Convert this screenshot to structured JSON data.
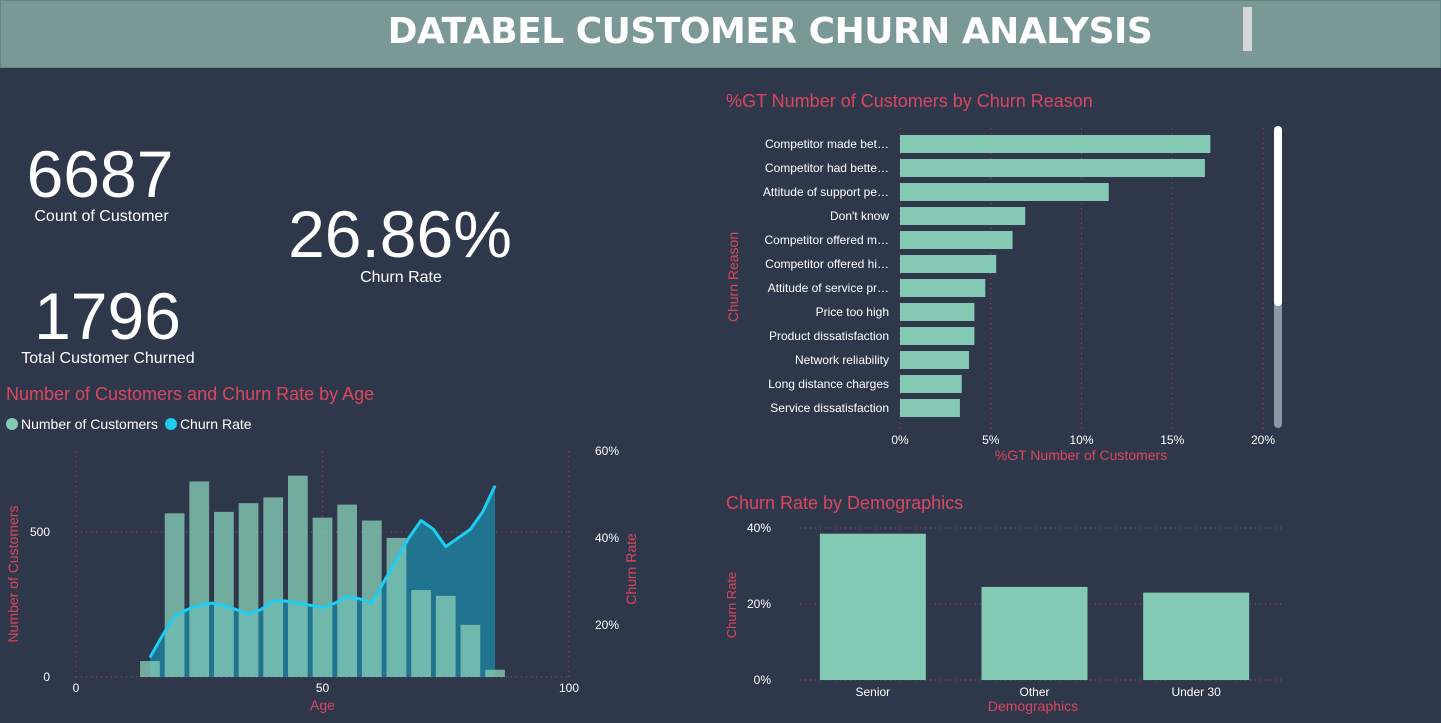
{
  "header": {
    "title": "DATABEL CUSTOMER CHURN ANALYSIS"
  },
  "kpis": {
    "count_customer": {
      "value": "6687",
      "label": "Count of Customer"
    },
    "churn_rate": {
      "value": "26.86%",
      "label": "Churn Rate"
    },
    "total_churned": {
      "value": "1796",
      "label": "Total Customer Churned"
    }
  },
  "colors": {
    "bar": "#83c9b4",
    "line": "#1ecdf2",
    "title": "#d9475f",
    "background": "#2f374b",
    "grid": "#c0405a"
  },
  "chart_data": [
    {
      "type": "bar+line",
      "title": "Number of Customers and Churn Rate by Age",
      "legend": [
        "Number of Customers",
        "Churn Rate"
      ],
      "legend_position": "top-left",
      "xlabel": "Age",
      "ylabel": "Number of Customers",
      "y2label": "Churn Rate",
      "xlim": [
        0,
        100
      ],
      "ylim": [
        0,
        780
      ],
      "y2lim": [
        8,
        60
      ],
      "xticks": [
        "0",
        "50",
        "100"
      ],
      "yticks": [
        "0",
        "500"
      ],
      "y2ticks": [
        "20%",
        "40%",
        "60%"
      ],
      "series": [
        {
          "name": "Number of Customers",
          "x": [
            15,
            20,
            25,
            30,
            35,
            40,
            45,
            50,
            55,
            60,
            65,
            70,
            75,
            80,
            85
          ],
          "values": [
            55,
            565,
            675,
            570,
            600,
            620,
            695,
            550,
            595,
            540,
            480,
            300,
            280,
            180,
            25
          ]
        },
        {
          "name": "Churn Rate",
          "x": [
            15,
            17.5,
            20,
            22.5,
            25,
            27.5,
            30,
            32.5,
            35,
            37.5,
            40,
            42.5,
            45,
            47.5,
            50,
            52.5,
            55,
            57.5,
            60,
            62.5,
            65,
            67.5,
            70,
            72.5,
            75,
            77.5,
            80,
            82.5,
            85
          ],
          "values": [
            12.5,
            17.5,
            22,
            23.5,
            24.5,
            25,
            24.5,
            23.5,
            22.5,
            23.5,
            25.5,
            25.5,
            25,
            24.5,
            24,
            25,
            26.5,
            26,
            25,
            30,
            35,
            40,
            44,
            42,
            38,
            40,
            42,
            46,
            52
          ]
        }
      ]
    },
    {
      "type": "bar",
      "orientation": "horizontal",
      "title": "%GT Number of Customers by Churn Reason",
      "xlabel": "%GT Number of Customers",
      "ylabel": "Churn Reason",
      "xlim": [
        0,
        20
      ],
      "xticks": [
        "0%",
        "5%",
        "10%",
        "15%",
        "20%"
      ],
      "categories": [
        "Competitor made bet…",
        "Competitor had bette…",
        "Attitude of support pe…",
        "Don't know",
        "Competitor offered m…",
        "Competitor offered hi…",
        "Attitude of service pr…",
        "Price too high",
        "Product dissatisfaction",
        "Network reliability",
        "Long distance charges",
        "Service dissatisfaction"
      ],
      "values": [
        17.1,
        16.8,
        11.5,
        6.9,
        6.2,
        5.3,
        4.7,
        4.1,
        4.1,
        3.8,
        3.4,
        3.3
      ]
    },
    {
      "type": "bar",
      "title": "Churn Rate by Demographics",
      "xlabel": "Demographics",
      "ylabel": "Churn Rate",
      "ylim": [
        0,
        40
      ],
      "yticks": [
        "0%",
        "20%",
        "40%"
      ],
      "categories": [
        "Senior",
        "Other",
        "Under 30"
      ],
      "values": [
        38.5,
        24.5,
        23
      ]
    }
  ]
}
